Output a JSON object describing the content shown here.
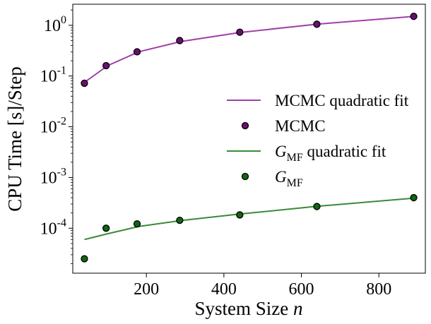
{
  "chart_data": {
    "type": "scatter",
    "xlabel": "System Size",
    "xlabel_var": "n",
    "ylabel": "CPU Time [s]/Step",
    "xscale": "linear",
    "yscale": "log",
    "xlim": [
      10,
      920
    ],
    "ylim": [
      1.3e-05,
      2.6
    ],
    "xticks": [
      {
        "value": 200,
        "label": "200"
      },
      {
        "value": 400,
        "label": "400"
      },
      {
        "value": 600,
        "label": "600"
      },
      {
        "value": 800,
        "label": "800"
      }
    ],
    "yticks": [
      {
        "value": 0.0001,
        "base": "10",
        "exp": "-4"
      },
      {
        "value": 0.001,
        "base": "10",
        "exp": "-3"
      },
      {
        "value": 0.01,
        "base": "10",
        "exp": "-2"
      },
      {
        "value": 0.1,
        "base": "10",
        "exp": "-1"
      },
      {
        "value": 1,
        "base": "10",
        "exp": "0"
      }
    ],
    "grid": false,
    "legend_position": "center-right",
    "colors": {
      "mcmc_line": "#a040a8",
      "mcmc_marker": "#6a0f72",
      "mf_line": "#3a8a3a",
      "mf_marker": "#116611",
      "marker_edge": "#000000"
    },
    "series": [
      {
        "name": "MCMC quadratic fit",
        "kind": "line",
        "color": "#a040a8",
        "x": [
          40,
          100,
          180,
          290,
          440,
          640,
          890
        ],
        "y": [
          0.075,
          0.16,
          0.3,
          0.48,
          0.72,
          1.05,
          1.5
        ]
      },
      {
        "name": "MCMC",
        "kind": "scatter",
        "color": "#6a0f72",
        "x": [
          40,
          96,
          176,
          286,
          441,
          640,
          890
        ],
        "y": [
          0.072,
          0.16,
          0.3,
          0.5,
          0.73,
          1.05,
          1.5
        ]
      },
      {
        "name": "G",
        "name_sub": "MF",
        "name_suffix": " quadratic fit",
        "kind": "line",
        "color": "#3a8a3a",
        "x": [
          40,
          100,
          180,
          290,
          440,
          640,
          890
        ],
        "y": [
          6e-05,
          7.8e-05,
          0.000108,
          0.000142,
          0.00019,
          0.00027,
          0.00039
        ]
      },
      {
        "name": "G",
        "name_sub": "MF",
        "name_suffix": "",
        "kind": "scatter",
        "color": "#116611",
        "x": [
          40,
          96,
          176,
          286,
          441,
          640,
          890
        ],
        "y": [
          2.5e-05,
          0.0001,
          0.000122,
          0.000143,
          0.000183,
          0.000268,
          0.0004
        ]
      }
    ]
  }
}
